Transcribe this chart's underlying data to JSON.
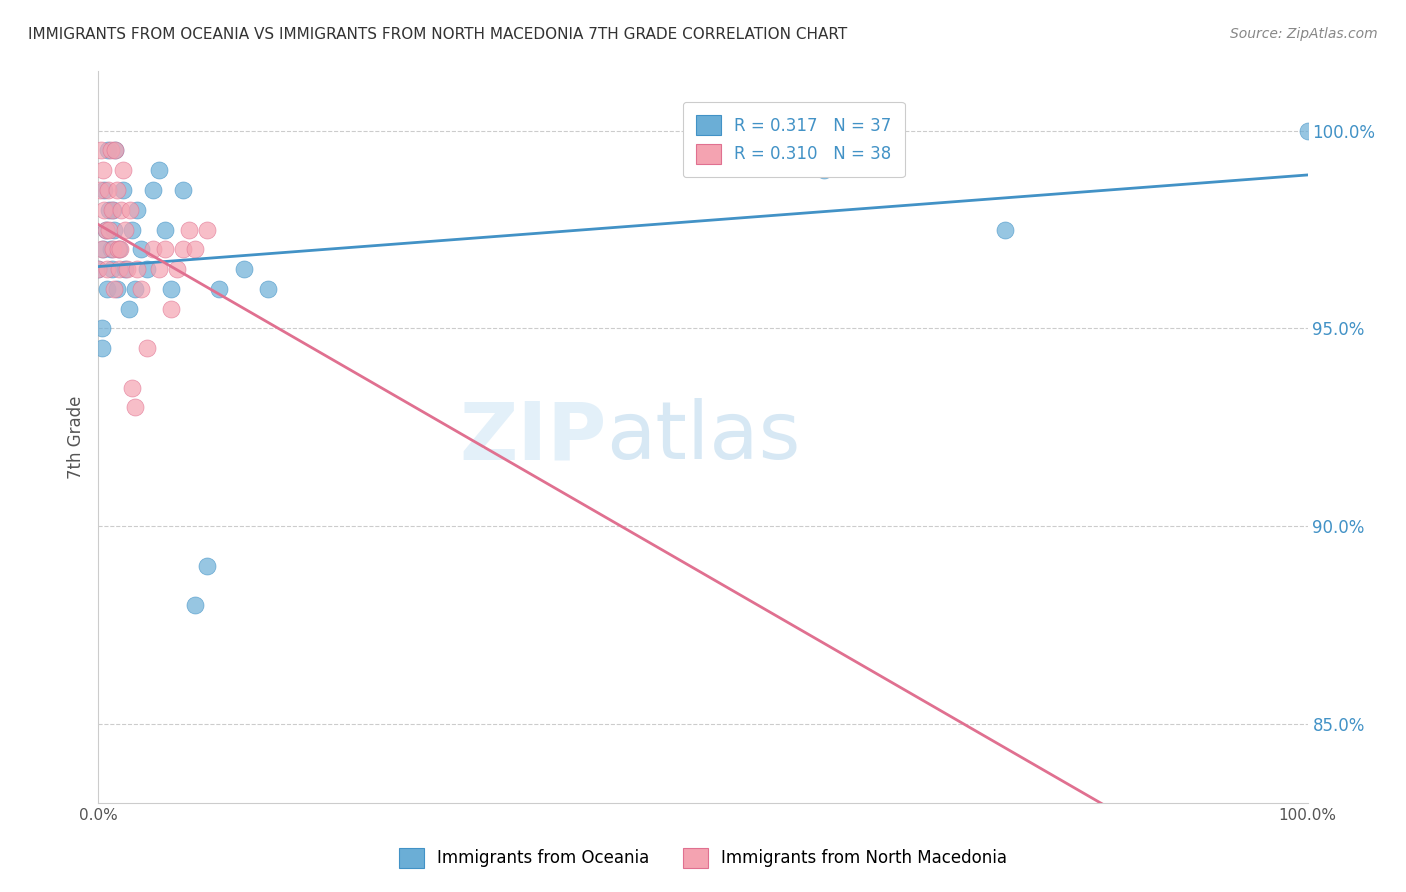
{
  "title": "IMMIGRANTS FROM OCEANIA VS IMMIGRANTS FROM NORTH MACEDONIA 7TH GRADE CORRELATION CHART",
  "source": "Source: ZipAtlas.com",
  "ylabel": "7th Grade",
  "yticks": [
    100.0,
    95.0,
    90.0,
    85.0
  ],
  "ytick_labels": [
    "100.0%",
    "95.0%",
    "90.0%",
    "85.0%"
  ],
  "legend_r1": "R = 0.317",
  "legend_n1": "N = 37",
  "legend_r2": "R = 0.310",
  "legend_n2": "N = 38",
  "color_blue": "#6baed6",
  "color_pink": "#f4a3b1",
  "trendline_blue": "#4292c6",
  "trendline_pink": "#e07090",
  "background": "#ffffff",
  "grid_color": "#cccccc",
  "watermark_zip": "ZIP",
  "watermark_atlas": "atlas",
  "oceania_x": [
    0.0,
    0.003,
    0.003,
    0.004,
    0.005,
    0.006,
    0.007,
    0.008,
    0.009,
    0.01,
    0.011,
    0.012,
    0.013,
    0.014,
    0.015,
    0.017,
    0.02,
    0.022,
    0.025,
    0.028,
    0.03,
    0.032,
    0.035,
    0.04,
    0.045,
    0.05,
    0.055,
    0.06,
    0.07,
    0.08,
    0.09,
    0.1,
    0.12,
    0.14,
    0.6,
    0.75,
    1.0
  ],
  "oceania_y": [
    96.5,
    95.0,
    94.5,
    97.0,
    98.5,
    97.5,
    96.0,
    99.5,
    98.0,
    97.0,
    96.5,
    98.0,
    97.5,
    99.5,
    96.0,
    97.0,
    98.5,
    96.5,
    95.5,
    97.5,
    96.0,
    98.0,
    97.0,
    96.5,
    98.5,
    99.0,
    97.5,
    96.0,
    98.5,
    88.0,
    89.0,
    96.0,
    96.5,
    96.0,
    99.0,
    97.5,
    100.0
  ],
  "macedonia_x": [
    0.0,
    0.001,
    0.002,
    0.003,
    0.004,
    0.005,
    0.006,
    0.007,
    0.008,
    0.009,
    0.01,
    0.011,
    0.012,
    0.013,
    0.014,
    0.015,
    0.016,
    0.017,
    0.018,
    0.019,
    0.02,
    0.022,
    0.024,
    0.026,
    0.028,
    0.03,
    0.032,
    0.035,
    0.04,
    0.045,
    0.05,
    0.055,
    0.06,
    0.065,
    0.07,
    0.075,
    0.08,
    0.09
  ],
  "macedonia_y": [
    96.5,
    98.5,
    99.5,
    97.0,
    99.0,
    98.0,
    97.5,
    96.5,
    98.5,
    97.5,
    99.5,
    98.0,
    97.0,
    96.0,
    99.5,
    98.5,
    97.0,
    96.5,
    97.0,
    98.0,
    99.0,
    97.5,
    96.5,
    98.0,
    93.5,
    93.0,
    96.5,
    96.0,
    94.5,
    97.0,
    96.5,
    97.0,
    95.5,
    96.5,
    97.0,
    97.5,
    97.0,
    97.5
  ]
}
